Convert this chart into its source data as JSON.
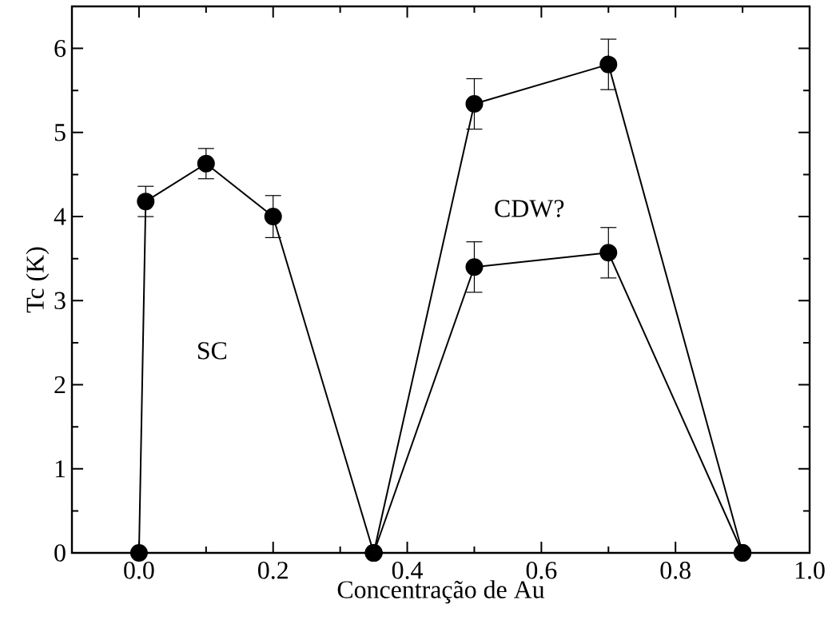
{
  "chart_data": {
    "type": "line",
    "xlabel": "Concentração de Au",
    "ylabel": "Tc (K)",
    "xlim": [
      -0.1,
      1.0
    ],
    "ylim": [
      0,
      6.5
    ],
    "xticks": [
      {
        "value": 0.0,
        "label": "0.0"
      },
      {
        "value": 0.2,
        "label": "0.2"
      },
      {
        "value": 0.4,
        "label": "0.4"
      },
      {
        "value": 0.6,
        "label": "0.6"
      },
      {
        "value": 0.8,
        "label": "0.8"
      },
      {
        "value": 1.0,
        "label": "1.0"
      }
    ],
    "yticks": [
      0,
      1,
      2,
      3,
      4,
      5,
      6
    ],
    "grid": false,
    "marker": "circle",
    "line_style": "solid",
    "series": [
      {
        "color": "#000000",
        "x": [
          0.0,
          0.01,
          0.1,
          0.2,
          0.35
        ],
        "values": [
          0,
          4.18,
          4.63,
          4.0,
          0
        ],
        "errors": [
          null,
          0.18,
          0.18,
          0.25,
          null
        ]
      },
      {
        "color": "#000000",
        "x": [
          0.35,
          0.5,
          0.7,
          0.9
        ],
        "values": [
          0,
          5.34,
          5.81,
          0
        ],
        "errors": [
          null,
          0.3,
          0.3,
          null
        ]
      },
      {
        "color": "#000000",
        "x": [
          0.35,
          0.5,
          0.7,
          0.9
        ],
        "values": [
          0,
          3.4,
          3.57,
          0
        ],
        "errors": [
          null,
          0.3,
          0.3,
          null
        ]
      }
    ],
    "annotations": [
      "SC",
      "CDW?"
    ]
  }
}
